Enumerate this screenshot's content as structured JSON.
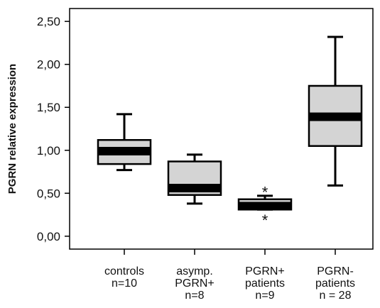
{
  "chart_data": {
    "type": "box",
    "ylabel": "PGRN relative expression",
    "ylim": [
      0,
      2.5
    ],
    "y_ticks": [
      {
        "value": 0.0,
        "label": "0,00"
      },
      {
        "value": 0.5,
        "label": "0,50"
      },
      {
        "value": 1.0,
        "label": "1,00"
      },
      {
        "value": 1.5,
        "label": "1,50"
      },
      {
        "value": 2.0,
        "label": "2,00"
      },
      {
        "value": 2.5,
        "label": "2,50"
      }
    ],
    "categories": [
      {
        "lines": [
          "controls",
          "n=10"
        ],
        "min": 0.77,
        "q1": 0.84,
        "median": 0.99,
        "q3": 1.12,
        "max": 1.42,
        "outliers": []
      },
      {
        "lines": [
          "asymp.",
          "PGRN+",
          "n=8"
        ],
        "min": 0.38,
        "q1": 0.48,
        "median": 0.56,
        "q3": 0.87,
        "max": 0.95,
        "outliers": []
      },
      {
        "lines": [
          "PGRN+",
          "patients",
          "n=9"
        ],
        "min": 0.31,
        "q1": 0.31,
        "median": 0.35,
        "q3": 0.43,
        "max": 0.47,
        "outliers": [
          0.55,
          0.22
        ]
      },
      {
        "lines": [
          "PGRN-",
          "patients",
          "n = 28"
        ],
        "min": 0.59,
        "q1": 1.05,
        "median": 1.39,
        "q3": 1.75,
        "max": 2.32,
        "outliers": []
      }
    ],
    "outlier_symbol": "*",
    "colors": {
      "box_fill": "#d4d4d4",
      "stroke": "#000000",
      "median": "#000000"
    },
    "grid": false,
    "legend": "none"
  }
}
